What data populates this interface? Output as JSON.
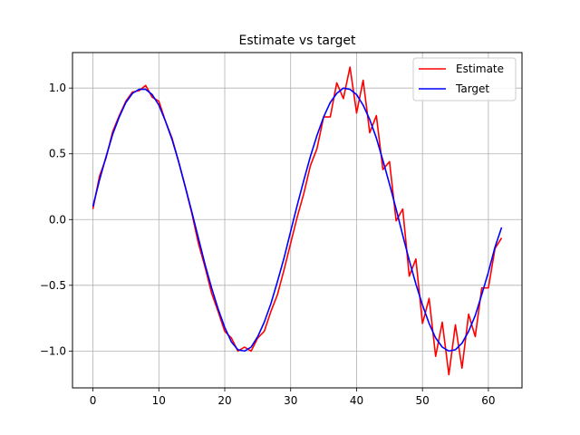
{
  "chart_data": {
    "type": "line",
    "title": "Estimate vs target",
    "xlabel": "",
    "ylabel": "",
    "xlim": [
      -3.1,
      65.1
    ],
    "ylim": [
      -1.28,
      1.27
    ],
    "xticks": [
      0,
      10,
      20,
      30,
      40,
      50,
      60
    ],
    "xtick_labels": [
      "0",
      "10",
      "20",
      "30",
      "40",
      "50",
      "60"
    ],
    "yticks": [
      -1.0,
      -0.5,
      0.0,
      0.5,
      1.0
    ],
    "ytick_labels": [
      "−1.0",
      "−0.5",
      "0.0",
      "0.5",
      "1.0"
    ],
    "grid": true,
    "legend_position": "top-right",
    "series": [
      {
        "name": "Estimate",
        "color": "#ff0000",
        "x": [
          0,
          1,
          2,
          3,
          4,
          5,
          6,
          7,
          8,
          9,
          10,
          11,
          12,
          13,
          14,
          15,
          16,
          17,
          18,
          19,
          20,
          21,
          22,
          23,
          24,
          25,
          26,
          27,
          28,
          29,
          30,
          31,
          32,
          33,
          34,
          35,
          36,
          37,
          38,
          39,
          40,
          41,
          42,
          43,
          44,
          45,
          46,
          47,
          48,
          49,
          50,
          51,
          52,
          53,
          54,
          55,
          56,
          57,
          58,
          59,
          60,
          61,
          62
        ],
        "y": [
          0.08,
          0.33,
          0.47,
          0.67,
          0.79,
          0.9,
          0.97,
          0.98,
          1.02,
          0.93,
          0.9,
          0.75,
          0.62,
          0.44,
          0.25,
          0.05,
          -0.18,
          -0.36,
          -0.56,
          -0.7,
          -0.85,
          -0.9,
          -1.0,
          -0.97,
          -1.0,
          -0.9,
          -0.85,
          -0.7,
          -0.57,
          -0.38,
          -0.18,
          0.02,
          0.2,
          0.41,
          0.54,
          0.78,
          0.78,
          1.04,
          0.92,
          1.16,
          0.81,
          1.06,
          0.66,
          0.79,
          0.38,
          0.44,
          -0.01,
          0.08,
          -0.43,
          -0.3,
          -0.79,
          -0.6,
          -1.04,
          -0.78,
          -1.18,
          -0.8,
          -1.13,
          -0.72,
          -0.89,
          -0.52,
          -0.52,
          -0.22,
          -0.14
        ]
      },
      {
        "name": "Target",
        "color": "#0000ff",
        "x": [
          0,
          1,
          2,
          3,
          4,
          5,
          6,
          7,
          8,
          9,
          10,
          11,
          12,
          13,
          14,
          15,
          16,
          17,
          18,
          19,
          20,
          21,
          22,
          23,
          24,
          25,
          26,
          27,
          28,
          29,
          30,
          31,
          32,
          33,
          34,
          35,
          36,
          37,
          38,
          39,
          40,
          41,
          42,
          43,
          44,
          45,
          46,
          47,
          48,
          49,
          50,
          51,
          52,
          53,
          54,
          55,
          56,
          57,
          58,
          59,
          60,
          61,
          62
        ],
        "y": [
          0.1,
          0.3,
          0.48,
          0.65,
          0.78,
          0.89,
          0.96,
          0.99,
          0.99,
          0.95,
          0.87,
          0.75,
          0.61,
          0.44,
          0.25,
          0.06,
          -0.14,
          -0.34,
          -0.52,
          -0.68,
          -0.82,
          -0.93,
          -0.99,
          -1.0,
          -0.97,
          -0.89,
          -0.78,
          -0.64,
          -0.47,
          -0.29,
          -0.09,
          0.11,
          0.3,
          0.48,
          0.64,
          0.78,
          0.89,
          0.96,
          1.0,
          0.99,
          0.95,
          0.87,
          0.76,
          0.62,
          0.45,
          0.27,
          0.08,
          -0.12,
          -0.31,
          -0.49,
          -0.65,
          -0.79,
          -0.9,
          -0.97,
          -1.0,
          -0.99,
          -0.94,
          -0.85,
          -0.73,
          -0.57,
          -0.4,
          -0.21,
          -0.06
        ]
      }
    ]
  }
}
